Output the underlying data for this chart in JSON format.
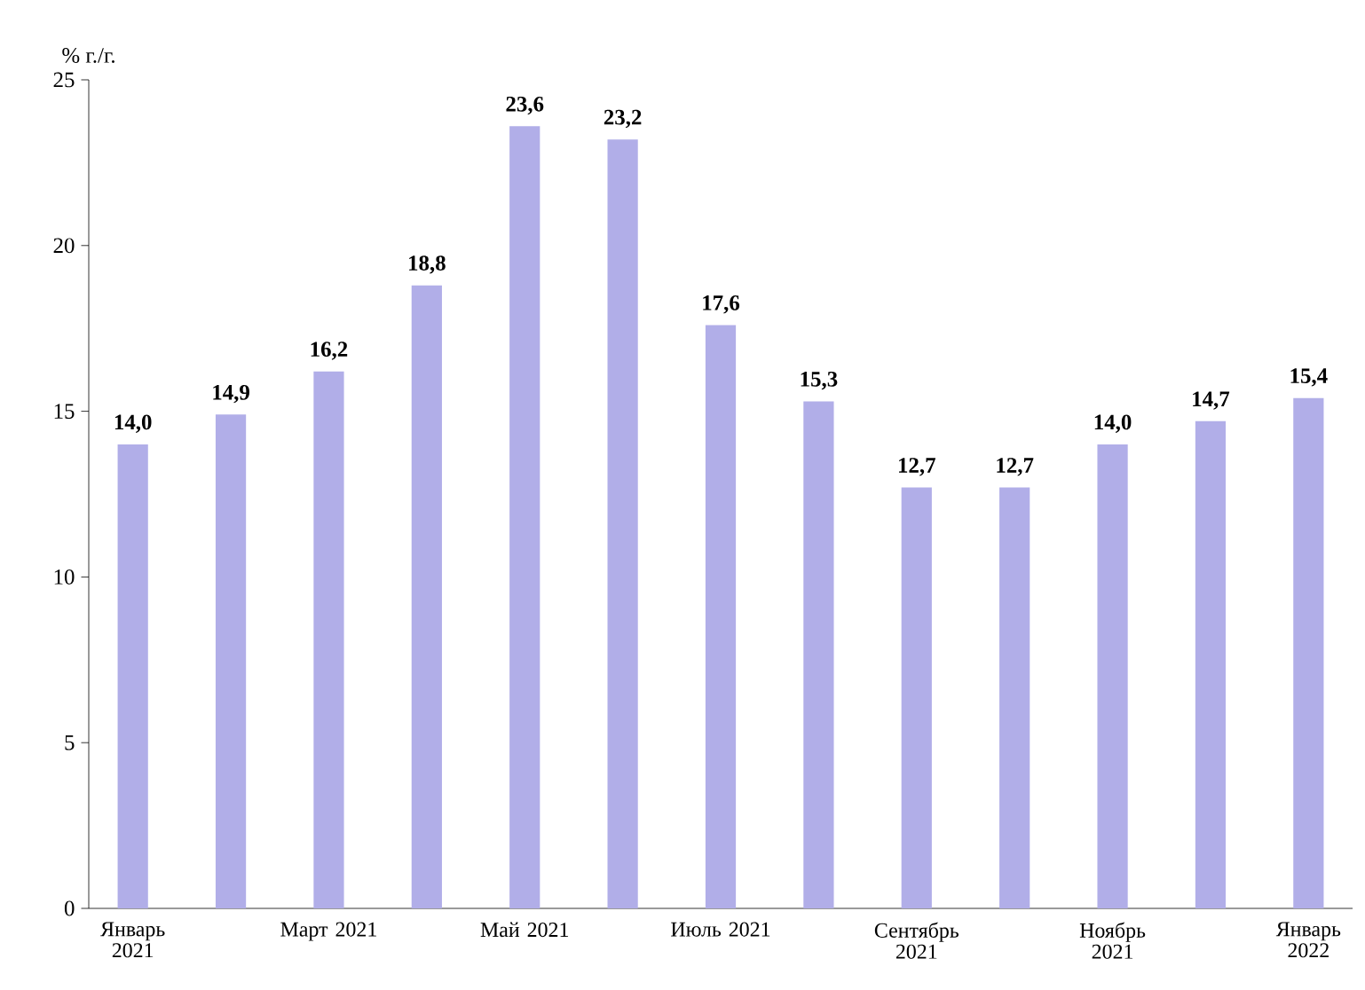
{
  "chart_data": {
    "type": "bar",
    "ylabel": "% г./г.",
    "categories": [
      "Январь 2021",
      null,
      "Март 2021",
      null,
      "Май 2021",
      null,
      "Июль 2021",
      null,
      "Сентябрь 2021",
      null,
      "Ноябрь 2021",
      null,
      "Январь 2022"
    ],
    "values": [
      14.0,
      14.9,
      16.2,
      18.8,
      23.6,
      23.2,
      17.6,
      15.3,
      12.7,
      12.7,
      14.0,
      14.7,
      15.4
    ],
    "value_labels": [
      "14,0",
      "14,9",
      "16,2",
      "18,8",
      "23,6",
      "23,2",
      "17,6",
      "15,3",
      "12,7",
      "12,7",
      "14,0",
      "14,7",
      "15,4"
    ],
    "color": "#b1aee8",
    "ylim": [
      0,
      25
    ],
    "yticks": [
      0,
      5,
      10,
      15,
      20,
      25
    ],
    "grid": false
  }
}
